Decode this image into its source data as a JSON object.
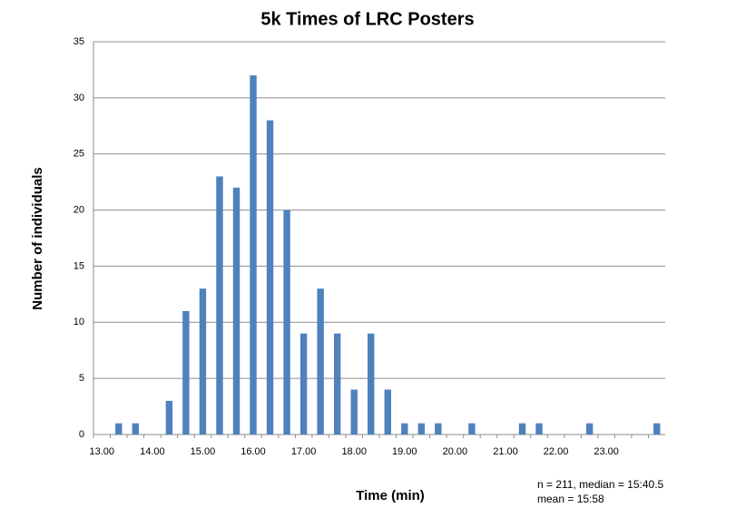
{
  "chart_data": {
    "type": "bar",
    "title": "5k Times of LRC Posters",
    "x_label": "Time (min)",
    "y_label": "Number of individuals",
    "annotations": [
      "n = 211, median = 15:40.5",
      "mean = 15:58"
    ],
    "categories": [
      "13.00",
      null,
      null,
      "14.00",
      null,
      null,
      "15.00",
      null,
      null,
      "16.00",
      null,
      null,
      "17.00",
      null,
      null,
      "18.00",
      null,
      null,
      "19.00",
      null,
      null,
      "20.00",
      null,
      null,
      "21.00",
      null,
      null,
      "22.00",
      null,
      null,
      "23.00",
      null,
      null,
      null
    ],
    "values": [
      0,
      1,
      1,
      0,
      3,
      11,
      13,
      23,
      22,
      32,
      28,
      20,
      9,
      13,
      9,
      4,
      9,
      4,
      1,
      1,
      1,
      0,
      1,
      0,
      0,
      1,
      1,
      0,
      0,
      1,
      0,
      0,
      0,
      1
    ],
    "color": "#4f81bd",
    "ylim": [
      0,
      35
    ],
    "yticks": [
      0,
      5,
      10,
      15,
      20,
      25,
      30,
      35
    ],
    "grid": true
  }
}
